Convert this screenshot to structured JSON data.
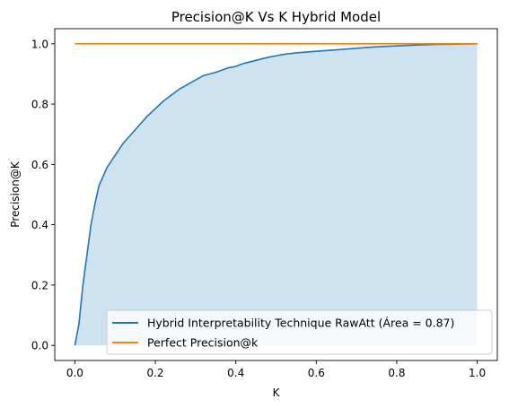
{
  "chart_data": {
    "type": "line",
    "title": "Precision@K Vs K Hybrid Model",
    "xlabel": "K",
    "ylabel": "Precision@K",
    "xlim": [
      -0.05,
      1.05
    ],
    "ylim": [
      -0.05,
      1.05
    ],
    "xticks": [
      0.0,
      0.2,
      0.4,
      0.6,
      0.8,
      1.0
    ],
    "yticks": [
      0.0,
      0.2,
      0.4,
      0.6,
      0.8,
      1.0
    ],
    "xtick_labels": [
      "0.0",
      "0.2",
      "0.4",
      "0.6",
      "0.8",
      "1.0"
    ],
    "ytick_labels": [
      "0.0",
      "0.2",
      "0.4",
      "0.6",
      "0.8",
      "1.0"
    ],
    "grid": false,
    "legend_position": "bottom-right",
    "series": [
      {
        "name": "Hybrid Interpretability Technique RawAtt (Área = 0.87)",
        "color": "#1f77b4",
        "fill_color": "#cfe2f0",
        "filled": true,
        "x": [
          0.0,
          0.01,
          0.02,
          0.03,
          0.04,
          0.05,
          0.06,
          0.07,
          0.08,
          0.1,
          0.12,
          0.14,
          0.16,
          0.18,
          0.2,
          0.22,
          0.24,
          0.26,
          0.28,
          0.3,
          0.32,
          0.35,
          0.38,
          0.4,
          0.42,
          0.45,
          0.48,
          0.5,
          0.52,
          0.55,
          0.6,
          0.65,
          0.7,
          0.75,
          0.8,
          0.85,
          0.9,
          0.95,
          1.0
        ],
        "y": [
          0.0,
          0.07,
          0.2,
          0.3,
          0.4,
          0.47,
          0.53,
          0.56,
          0.59,
          0.63,
          0.67,
          0.7,
          0.73,
          0.76,
          0.785,
          0.81,
          0.83,
          0.85,
          0.865,
          0.88,
          0.895,
          0.905,
          0.92,
          0.925,
          0.935,
          0.945,
          0.955,
          0.96,
          0.965,
          0.97,
          0.975,
          0.98,
          0.985,
          0.99,
          0.993,
          0.996,
          0.998,
          0.999,
          1.0
        ]
      },
      {
        "name": "Perfect Precision@k",
        "color": "#ff7f0e",
        "filled": false,
        "x": [
          0.0,
          1.0
        ],
        "y": [
          1.0,
          1.0
        ]
      }
    ]
  }
}
